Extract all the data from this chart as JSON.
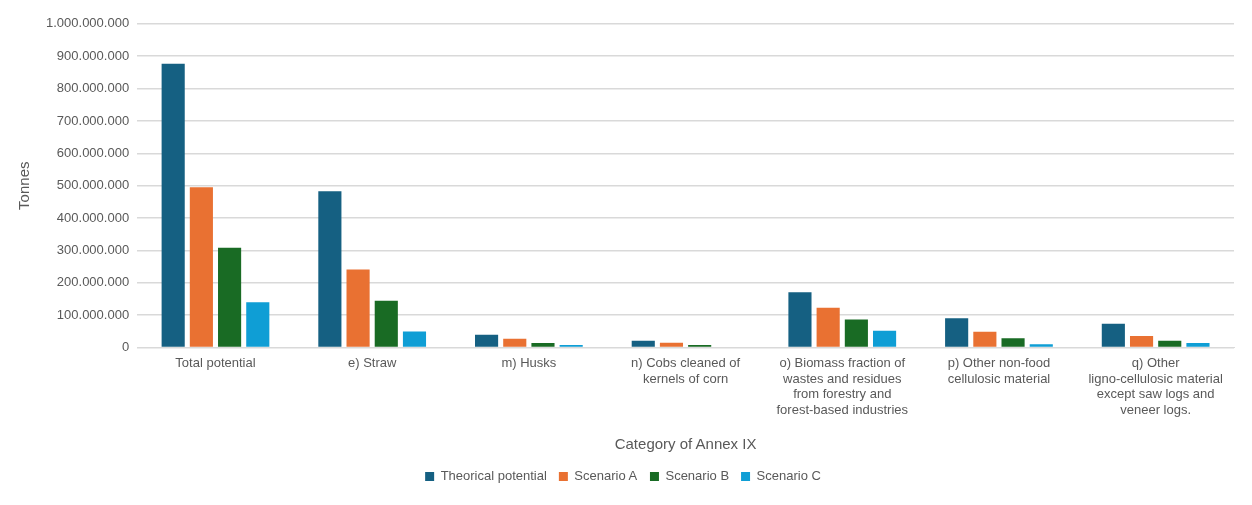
{
  "chart_data": {
    "type": "bar",
    "xlabel": "Category of Annex IX",
    "ylabel": "Tonnes",
    "categories": [
      "Total potential",
      "e) Straw",
      "m) Husks",
      "n) Cobs cleaned of kernels of corn",
      "o) Biomass fraction of wastes and residues from forestry and forest-based industries",
      "p) Other non-food cellulosic material",
      "q) Other ligno-cellulosic material except saw logs and veneer logs."
    ],
    "series": [
      {
        "name": "Theorical potential",
        "color": "#156082",
        "values": [
          877000000,
          483000000,
          40000000,
          21000000,
          171000000,
          91000000,
          74000000
        ]
      },
      {
        "name": "Scenario A",
        "color": "#e97132",
        "values": [
          495000000,
          241000000,
          27000000,
          15000000,
          123000000,
          49000000,
          36000000
        ]
      },
      {
        "name": "Scenario B",
        "color": "#196b24",
        "values": [
          308000000,
          145000000,
          14000000,
          8000000,
          87000000,
          29000000,
          21000000
        ]
      },
      {
        "name": "Scenario C",
        "color": "#0f9ed5",
        "values": [
          140000000,
          50000000,
          8000000,
          0,
          52000000,
          10000000,
          14000000
        ]
      }
    ],
    "ylim": [
      0,
      1000000000
    ],
    "yticks": [
      {
        "value": 0,
        "label": "0"
      },
      {
        "value": 100000000,
        "label": "100.000.000"
      },
      {
        "value": 200000000,
        "label": "200.000.000"
      },
      {
        "value": 300000000,
        "label": "300.000.000"
      },
      {
        "value": 400000000,
        "label": "400.000.000"
      },
      {
        "value": 500000000,
        "label": "500.000.000"
      },
      {
        "value": 600000000,
        "label": "600.000.000"
      },
      {
        "value": 700000000,
        "label": "700.000.000"
      },
      {
        "value": 800000000,
        "label": "800.000.000"
      },
      {
        "value": 900000000,
        "label": "900.000.000"
      },
      {
        "value": 1000000000,
        "label": "1.000.000.000"
      }
    ],
    "grid": "y",
    "legend": "bottom"
  }
}
